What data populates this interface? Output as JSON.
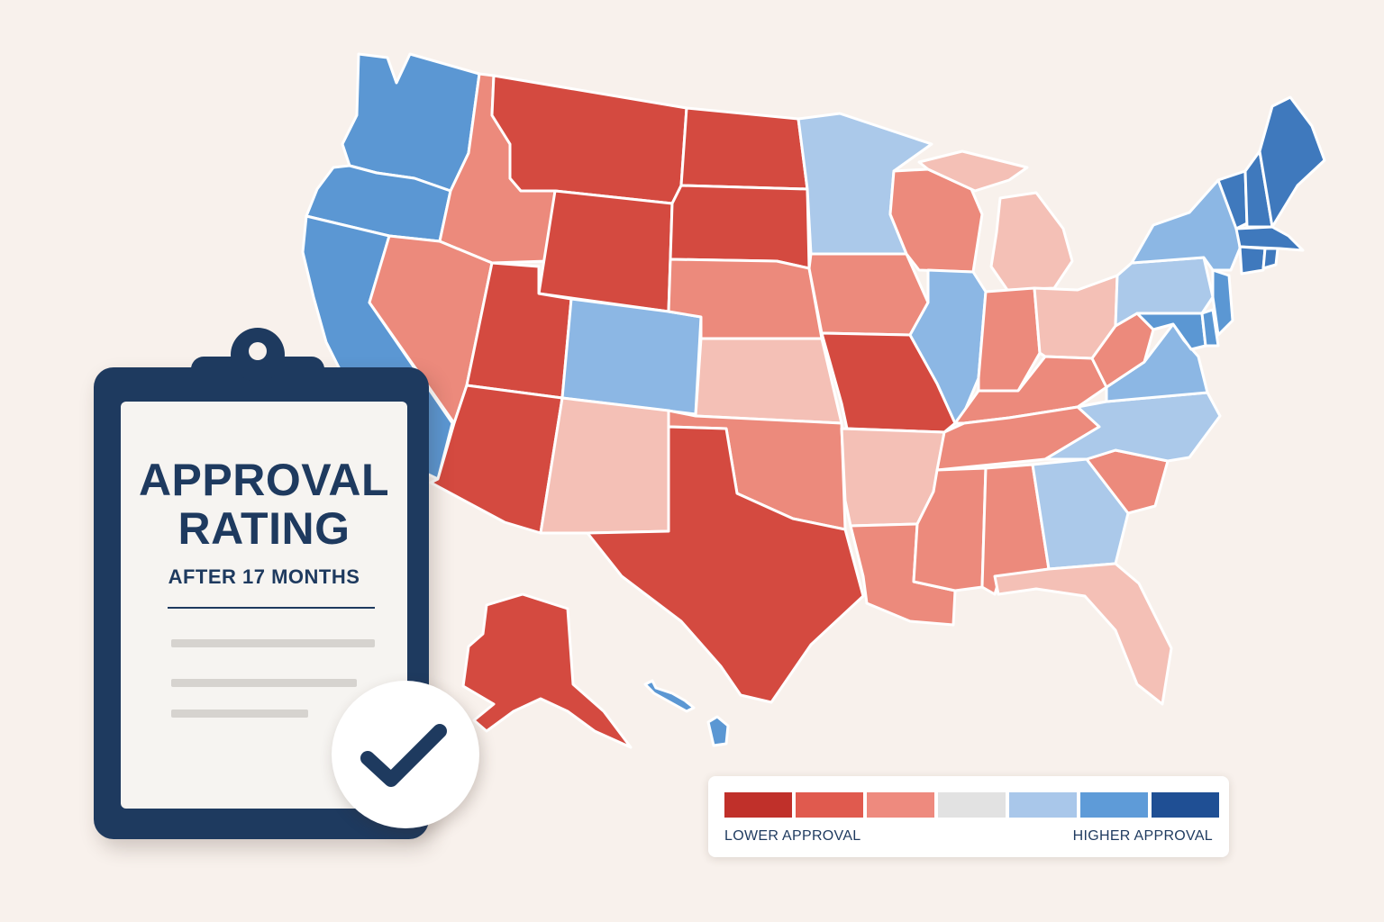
{
  "clipboard": {
    "title_line1": "APPROVAL",
    "title_line2": "RATING",
    "subtitle": "AFTER 17 MONTHS"
  },
  "legend": {
    "low_label": "LOWER APPROVAL",
    "high_label": "HIGHER APPROVAL",
    "scale": [
      {
        "level": "strong-low",
        "color": "#c0302a"
      },
      {
        "level": "low",
        "color": "#e05a4e"
      },
      {
        "level": "lean-low",
        "color": "#ee8a7e"
      },
      {
        "level": "neutral",
        "color": "#e2e2e2"
      },
      {
        "level": "lean-high",
        "color": "#a9c7ea"
      },
      {
        "level": "high",
        "color": "#5e9bd8"
      },
      {
        "level": "strong-high",
        "color": "#1f4f94"
      }
    ]
  },
  "map": {
    "region": "United States",
    "colors": {
      "dark-red": "#d44a40",
      "salmon": "#ec8a7c",
      "light-pink": "#f4c0b6",
      "light-blue": "#abc9ea",
      "mid-blue": "#8cb7e4",
      "blue": "#5b97d3",
      "dark-blue": "#3f79bd"
    },
    "states": [
      {
        "name": "Washington",
        "level": "blue"
      },
      {
        "name": "Oregon",
        "level": "blue"
      },
      {
        "name": "California",
        "level": "blue"
      },
      {
        "name": "Idaho",
        "level": "salmon"
      },
      {
        "name": "Nevada",
        "level": "salmon"
      },
      {
        "name": "Montana",
        "level": "dark-red"
      },
      {
        "name": "Wyoming",
        "level": "dark-red"
      },
      {
        "name": "Utah",
        "level": "dark-red"
      },
      {
        "name": "Arizona",
        "level": "dark-red"
      },
      {
        "name": "Colorado",
        "level": "mid-blue"
      },
      {
        "name": "New Mexico",
        "level": "light-pink"
      },
      {
        "name": "North Dakota",
        "level": "dark-red"
      },
      {
        "name": "South Dakota",
        "level": "dark-red"
      },
      {
        "name": "Nebraska",
        "level": "salmon"
      },
      {
        "name": "Kansas",
        "level": "light-pink"
      },
      {
        "name": "Oklahoma",
        "level": "salmon"
      },
      {
        "name": "Texas",
        "level": "dark-red"
      },
      {
        "name": "Minnesota",
        "level": "light-blue"
      },
      {
        "name": "Iowa",
        "level": "salmon"
      },
      {
        "name": "Missouri",
        "level": "dark-red"
      },
      {
        "name": "Arkansas",
        "level": "light-pink"
      },
      {
        "name": "Louisiana",
        "level": "salmon"
      },
      {
        "name": "Wisconsin",
        "level": "salmon"
      },
      {
        "name": "Illinois",
        "level": "mid-blue"
      },
      {
        "name": "Michigan",
        "level": "light-pink"
      },
      {
        "name": "Indiana",
        "level": "salmon"
      },
      {
        "name": "Ohio",
        "level": "light-pink"
      },
      {
        "name": "Kentucky",
        "level": "salmon"
      },
      {
        "name": "Tennessee",
        "level": "salmon"
      },
      {
        "name": "Mississippi",
        "level": "salmon"
      },
      {
        "name": "Alabama",
        "level": "salmon"
      },
      {
        "name": "Georgia",
        "level": "light-blue"
      },
      {
        "name": "Florida",
        "level": "light-pink"
      },
      {
        "name": "South Carolina",
        "level": "salmon"
      },
      {
        "name": "North Carolina",
        "level": "light-blue"
      },
      {
        "name": "Virginia",
        "level": "mid-blue"
      },
      {
        "name": "West Virginia",
        "level": "salmon"
      },
      {
        "name": "Maryland",
        "level": "blue"
      },
      {
        "name": "Delaware",
        "level": "blue"
      },
      {
        "name": "Pennsylvania",
        "level": "light-blue"
      },
      {
        "name": "New Jersey",
        "level": "blue"
      },
      {
        "name": "New York",
        "level": "mid-blue"
      },
      {
        "name": "Connecticut",
        "level": "dark-blue"
      },
      {
        "name": "Rhode Island",
        "level": "dark-blue"
      },
      {
        "name": "Massachusetts",
        "level": "dark-blue"
      },
      {
        "name": "Vermont",
        "level": "dark-blue"
      },
      {
        "name": "New Hampshire",
        "level": "dark-blue"
      },
      {
        "name": "Maine",
        "level": "dark-blue"
      },
      {
        "name": "Alaska",
        "level": "dark-red"
      },
      {
        "name": "Hawaii",
        "level": "blue"
      }
    ]
  }
}
